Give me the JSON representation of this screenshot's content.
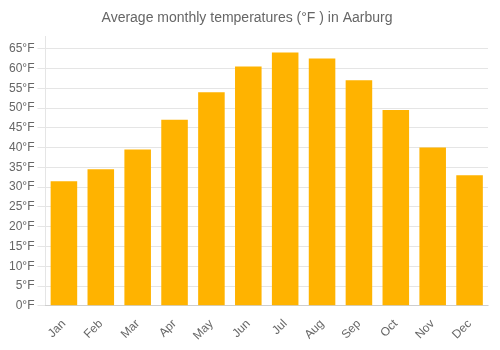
{
  "chart_data": {
    "type": "bar",
    "title": "Average monthly temperatures (°F ) in Aarburg",
    "categories": [
      "Jan",
      "Feb",
      "Mar",
      "Apr",
      "May",
      "Jun",
      "Jul",
      "Aug",
      "Sep",
      "Oct",
      "Nov",
      "Dec"
    ],
    "values": [
      31.5,
      34.5,
      39.5,
      47.0,
      54.0,
      60.5,
      64.0,
      62.5,
      57.0,
      49.5,
      40.0,
      33.0
    ],
    "color": "#FFB300",
    "ylim": [
      0,
      68
    ],
    "yticks": [
      {
        "value": 0,
        "label": "0°F"
      },
      {
        "value": 5,
        "label": "5°F"
      },
      {
        "value": 10,
        "label": "10°F"
      },
      {
        "value": 15,
        "label": "15°F"
      },
      {
        "value": 20,
        "label": "20°F"
      },
      {
        "value": 25,
        "label": "25°F"
      },
      {
        "value": 30,
        "label": "30°F"
      },
      {
        "value": 35,
        "label": "35°F"
      },
      {
        "value": 40,
        "label": "40°F"
      },
      {
        "value": 45,
        "label": "45°F"
      },
      {
        "value": 50,
        "label": "50°F"
      },
      {
        "value": 55,
        "label": "55°F"
      },
      {
        "value": 60,
        "label": "60°F"
      },
      {
        "value": 65,
        "label": "65°F"
      }
    ],
    "grid": true
  }
}
